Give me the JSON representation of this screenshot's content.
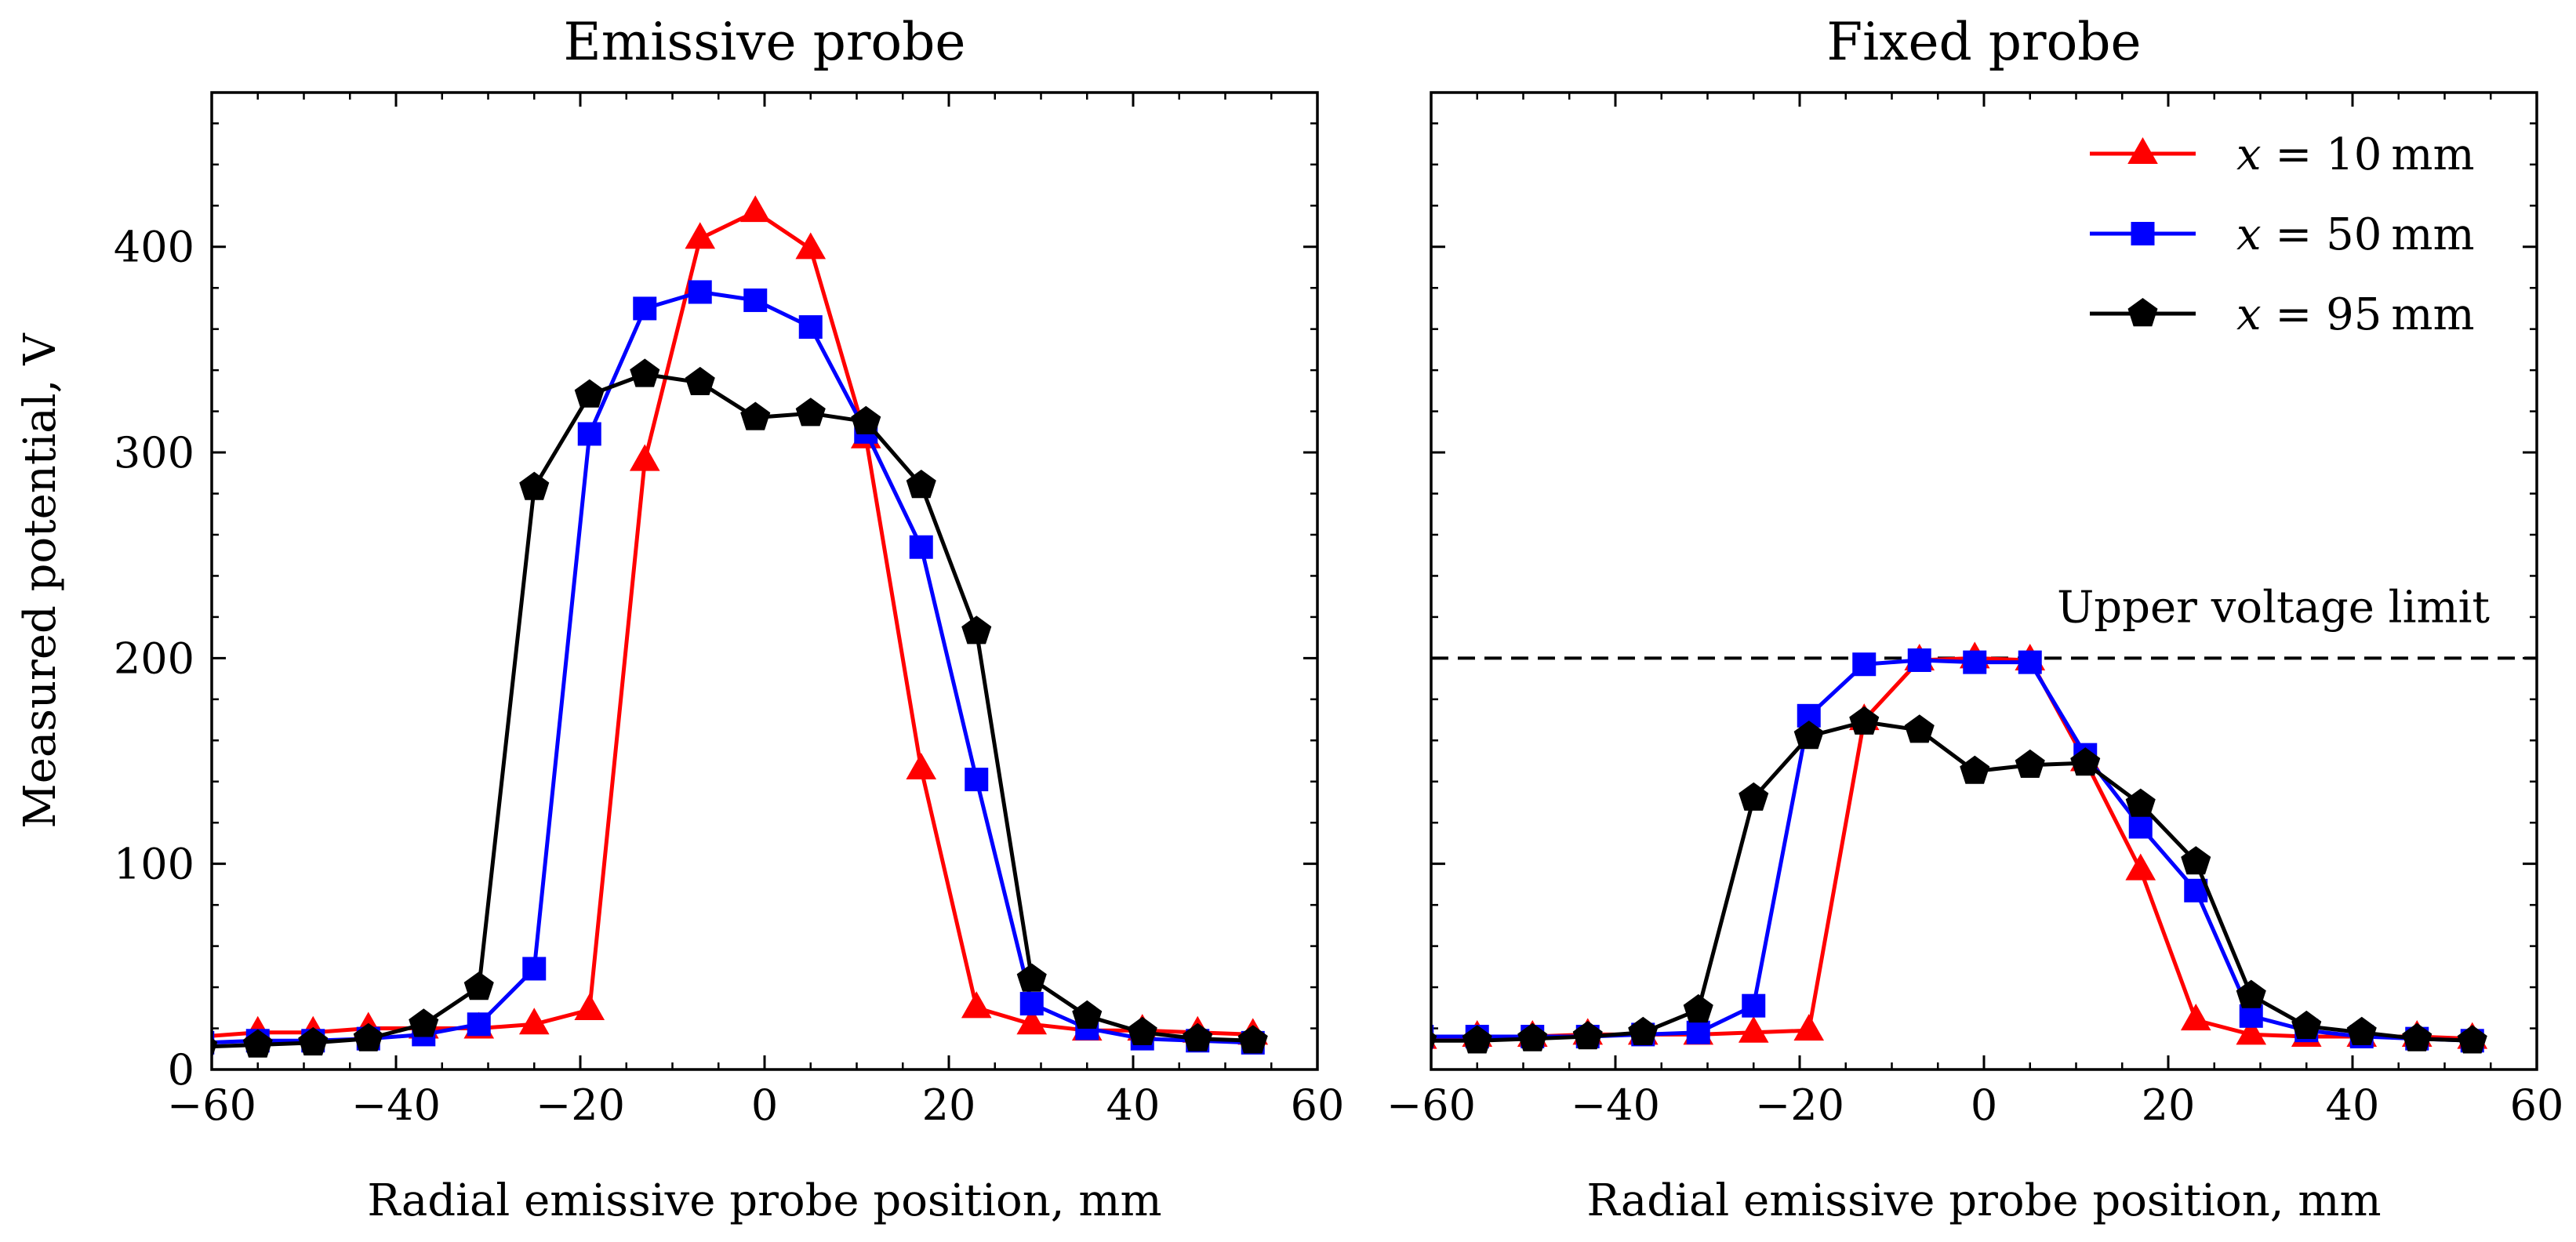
{
  "chart_data": [
    {
      "type": "line",
      "title": "Emissive probe",
      "xlabel": "Radial emissive probe position, mm",
      "ylabel": "Measured potential, V",
      "xlim": [
        -60,
        60
      ],
      "ylim": [
        0,
        475
      ],
      "xticks": [
        -60,
        -40,
        -20,
        0,
        20,
        40,
        60
      ],
      "xtick_labels": [
        "−60",
        "−40",
        "−20",
        "0",
        "20",
        "40",
        "60"
      ],
      "yticks": [
        0,
        100,
        200,
        300,
        400
      ],
      "ytick_labels": [
        "0",
        "100",
        "200",
        "300",
        "400"
      ],
      "x": [
        -61,
        -55,
        -49,
        -43,
        -37,
        -31,
        -25,
        -19,
        -13,
        -7,
        -1,
        5,
        11,
        17,
        23,
        29,
        35,
        41,
        47,
        53
      ],
      "series": [
        {
          "name": "x = 10 mm",
          "color": "#ff0000",
          "marker": "triangle",
          "values": [
            16,
            18,
            18,
            20,
            20,
            20,
            22,
            29,
            296,
            404,
            417,
            399,
            307,
            146,
            30,
            22,
            19,
            19,
            18,
            17
          ]
        },
        {
          "name": "x = 50 mm",
          "color": "#0000ff",
          "marker": "square",
          "values": [
            13,
            14,
            14,
            15,
            17,
            22,
            49,
            309,
            370,
            378,
            374,
            361,
            310,
            254,
            141,
            32,
            20,
            15,
            14,
            13
          ]
        },
        {
          "name": "x = 95 mm",
          "color": "#000000",
          "marker": "pentagon",
          "values": [
            11,
            12,
            13,
            15,
            22,
            40,
            283,
            328,
            338,
            334,
            317,
            319,
            315,
            284,
            213,
            44,
            26,
            18,
            15,
            14
          ]
        }
      ]
    },
    {
      "type": "line",
      "title": "Fixed probe",
      "xlabel": "Radial emissive probe position, mm",
      "ylabel": "",
      "xlim": [
        -60,
        60
      ],
      "ylim": [
        0,
        475
      ],
      "xticks": [
        -60,
        -40,
        -20,
        0,
        20,
        40,
        60
      ],
      "xtick_labels": [
        "−60",
        "−40",
        "−20",
        "0",
        "20",
        "40",
        "60"
      ],
      "yticks": [
        0,
        100,
        200,
        300,
        400
      ],
      "ytick_labels": [],
      "x": [
        -61,
        -55,
        -49,
        -43,
        -37,
        -31,
        -25,
        -19,
        -13,
        -7,
        -1,
        5,
        11,
        17,
        23,
        29,
        35,
        41,
        47,
        53
      ],
      "series": [
        {
          "name": "x = 10 mm",
          "color": "#ff0000",
          "marker": "triangle",
          "values": [
            15,
            16,
            16,
            17,
            17,
            17,
            18,
            19,
            170,
            199,
            200,
            199,
            150,
            97,
            24,
            17,
            16,
            16,
            16,
            15
          ]
        },
        {
          "name": "x = 50 mm",
          "color": "#0000ff",
          "marker": "square",
          "values": [
            16,
            16,
            16,
            16,
            17,
            18,
            31,
            172,
            197,
            199,
            198,
            198,
            153,
            118,
            87,
            26,
            19,
            16,
            15,
            14
          ]
        },
        {
          "name": "x = 95 mm",
          "color": "#000000",
          "marker": "pentagon",
          "values": [
            14,
            14,
            15,
            16,
            18,
            29,
            132,
            162,
            169,
            165,
            145,
            148,
            149,
            129,
            101,
            36,
            21,
            18,
            15,
            14
          ]
        }
      ],
      "reference_line": {
        "y": 200,
        "style": "dashed",
        "label": "Upper voltage limit"
      },
      "legend": {
        "placement": "top-right",
        "entries": [
          {
            "var": "x",
            "eq": " = 10",
            "unit": "mm"
          },
          {
            "var": "x",
            "eq": " = 50",
            "unit": "mm"
          },
          {
            "var": "x",
            "eq": " = 95",
            "unit": "mm"
          }
        ]
      }
    }
  ]
}
